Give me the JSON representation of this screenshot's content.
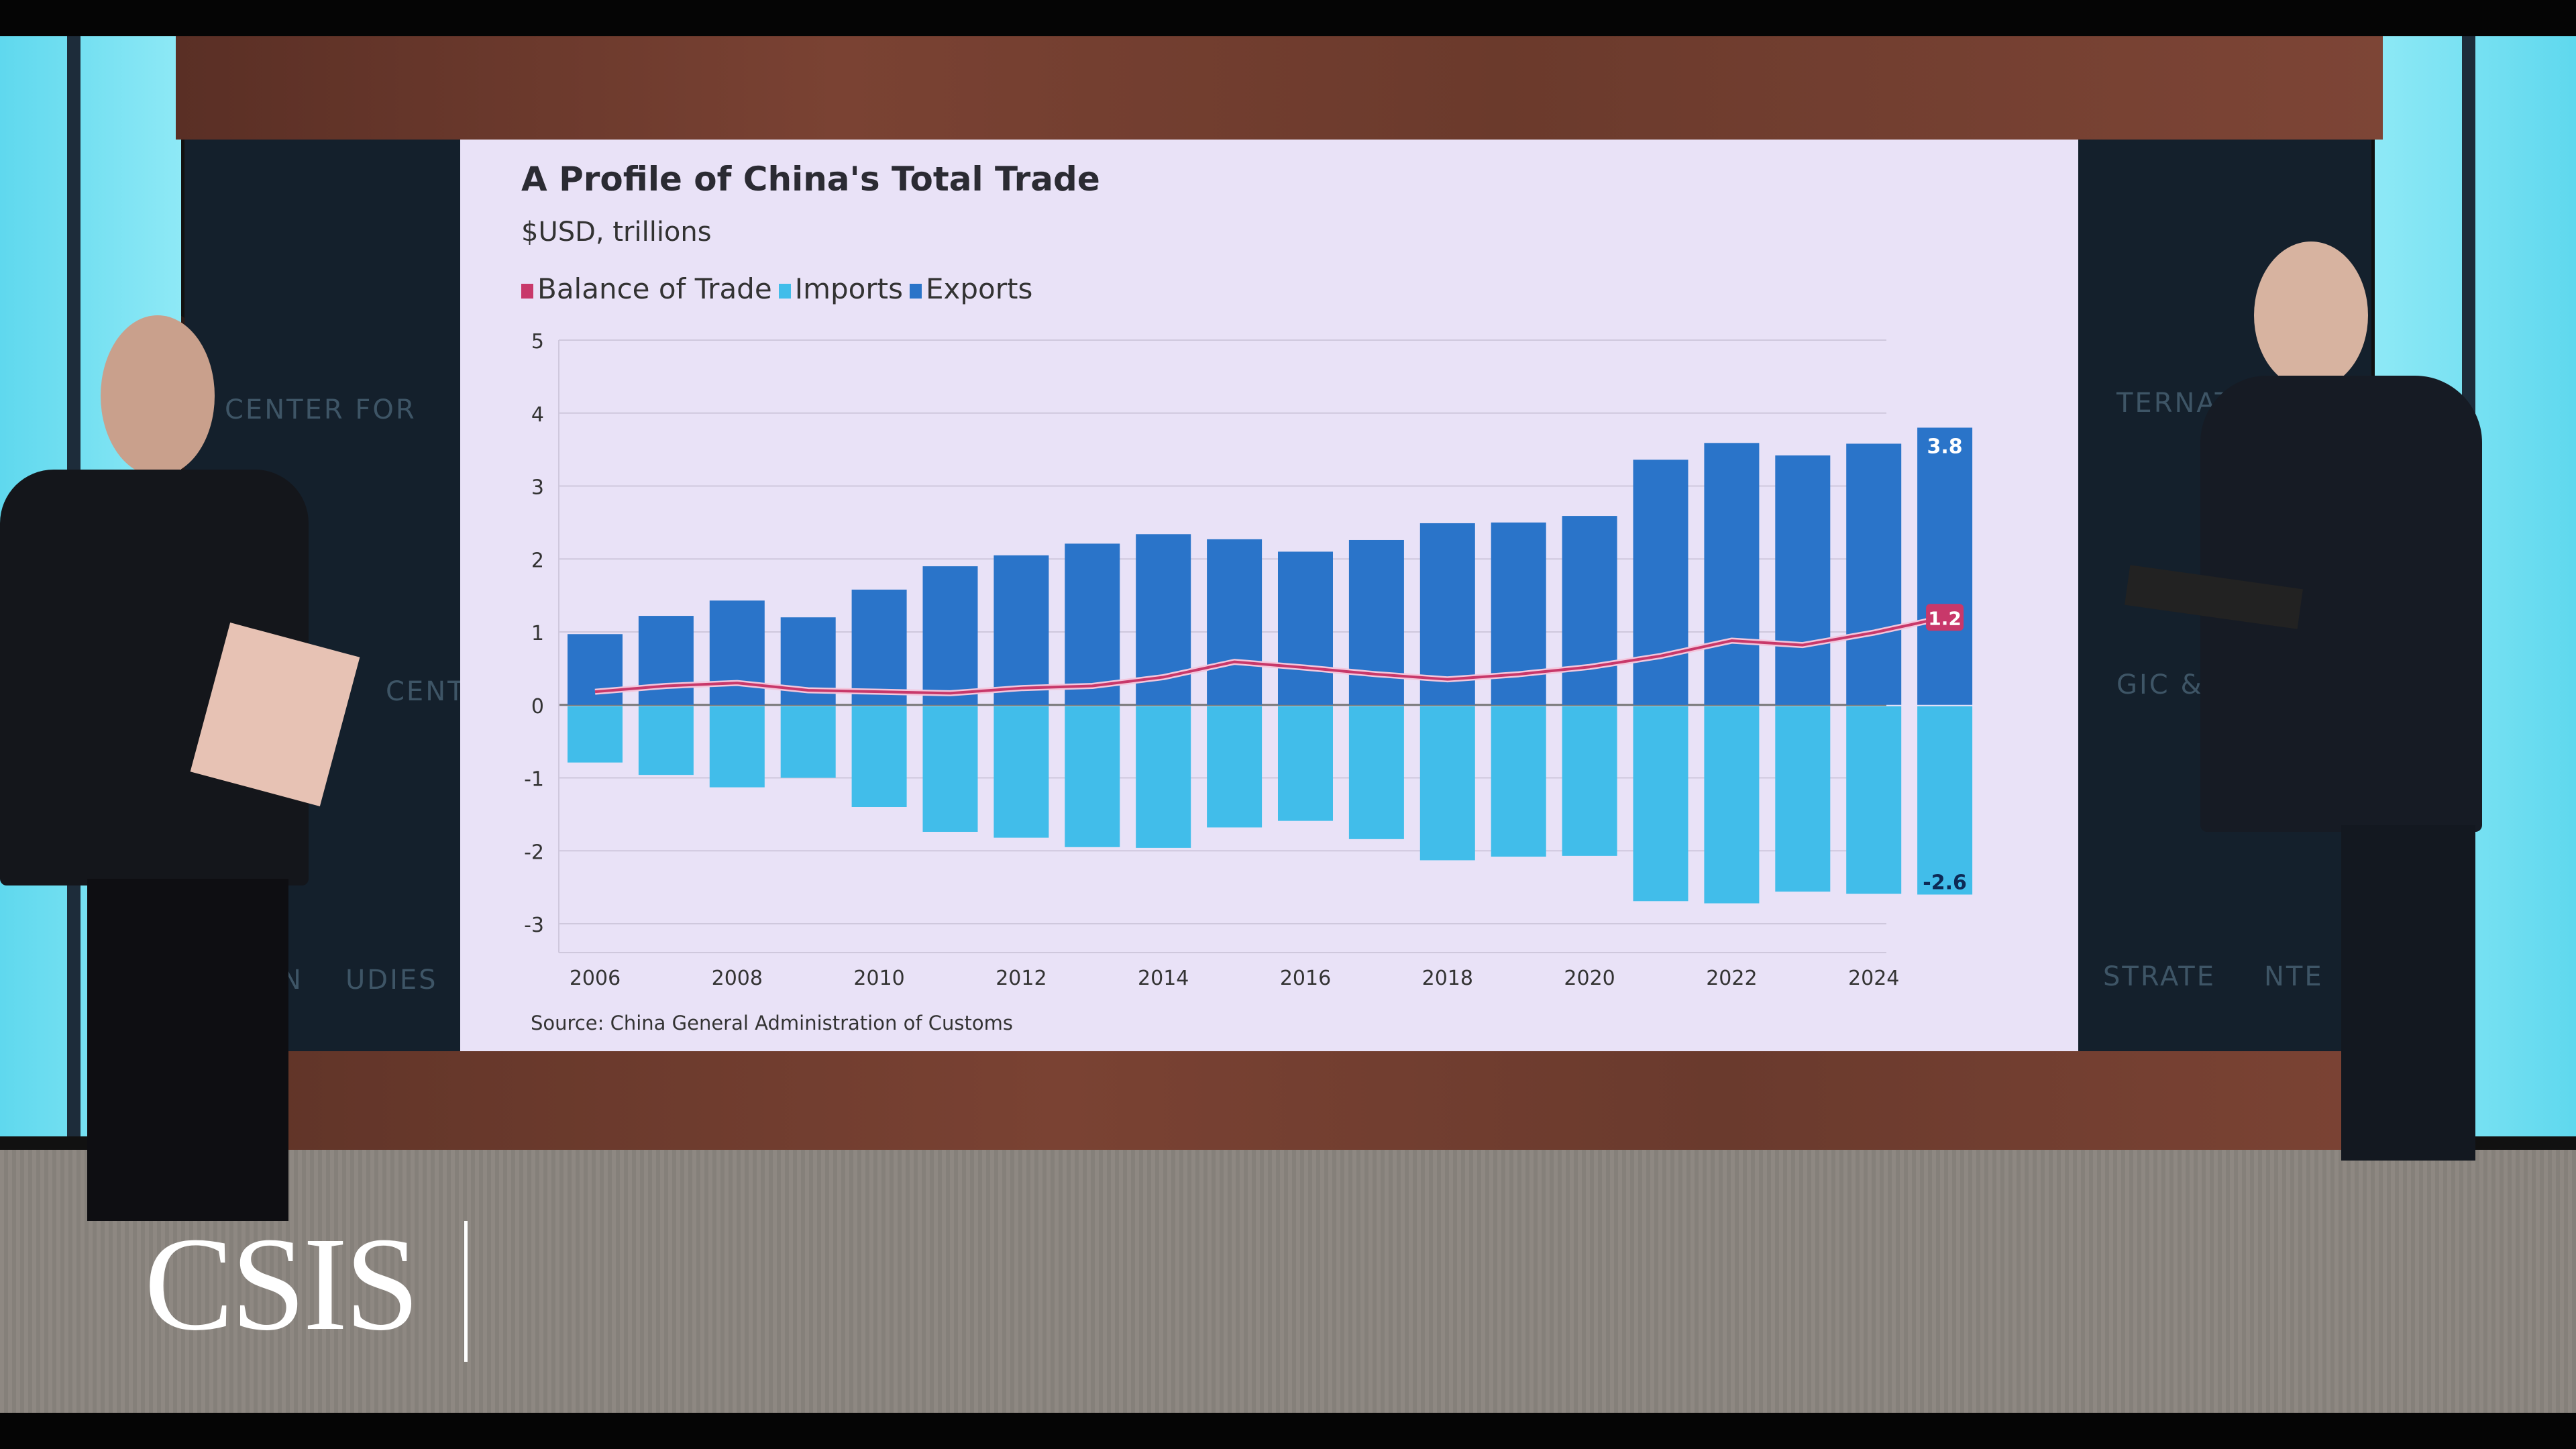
{
  "studio": {
    "logo": "CSIS",
    "wall_text": [
      "CENTER FOR",
      "CENT",
      "ATION",
      "UDIES",
      "TERNATIONAL",
      "GIC & INT",
      "STRATE",
      "NTE"
    ]
  },
  "chart_data": {
    "type": "bar",
    "title": "A Profile of China's Total Trade",
    "subtitle": "$USD, trillions",
    "source": "Source: China General Administration of Customs",
    "legend": [
      "Balance of Trade",
      "Imports",
      "Exports"
    ],
    "legend_position": "top-left",
    "grid": true,
    "ylim": [
      -3,
      5
    ],
    "yticks": [
      "5",
      "4",
      "3",
      "2",
      "1",
      "0",
      "-1",
      "-2",
      "-3"
    ],
    "xticks": [
      "2006",
      "2008",
      "2010",
      "2012",
      "2014",
      "2016",
      "2018",
      "2020",
      "2022",
      "2024"
    ],
    "categories": [
      2006,
      2007,
      2008,
      2009,
      2010,
      2011,
      2012,
      2013,
      2014,
      2015,
      2016,
      2017,
      2018,
      2019,
      2020,
      2021,
      2022,
      2023,
      2024,
      2025
    ],
    "series": [
      {
        "name": "Exports",
        "type": "bar",
        "color": "#2a74c9",
        "values": [
          0.97,
          1.22,
          1.43,
          1.2,
          1.58,
          1.9,
          2.05,
          2.21,
          2.34,
          2.27,
          2.1,
          2.26,
          2.49,
          2.5,
          2.59,
          3.36,
          3.59,
          3.42,
          3.58,
          3.8
        ]
      },
      {
        "name": "Imports",
        "type": "bar",
        "color": "#41bdea",
        "values": [
          -0.79,
          -0.96,
          -1.13,
          -1.0,
          -1.4,
          -1.74,
          -1.82,
          -1.95,
          -1.96,
          -1.68,
          -1.59,
          -1.84,
          -2.13,
          -2.08,
          -2.07,
          -2.69,
          -2.72,
          -2.56,
          -2.59,
          -2.6
        ]
      },
      {
        "name": "Balance of Trade",
        "type": "line",
        "color": "#c8386a",
        "values": [
          0.18,
          0.26,
          0.3,
          0.2,
          0.18,
          0.16,
          0.23,
          0.26,
          0.38,
          0.59,
          0.51,
          0.42,
          0.35,
          0.42,
          0.52,
          0.67,
          0.88,
          0.82,
          0.99,
          1.2
        ]
      }
    ],
    "data_labels": {
      "exports_last": "3.8",
      "balance_last": "1.2",
      "imports_last": "-2.6"
    }
  }
}
